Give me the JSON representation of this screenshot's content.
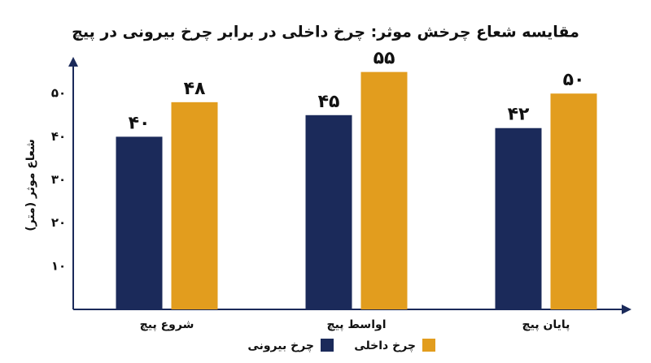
{
  "chart_data": {
    "type": "bar",
    "title": "مقایسه شعاع چرخش موثر: چرخ داخلی در برابر چرخ بیرونی در پیچ",
    "y_label": "شعاع موثر (متر)",
    "categories": [
      "شروع پیچ",
      "اواسط پیچ",
      "پایان پیچ"
    ],
    "series": [
      {
        "name": "چرخ بیرونی",
        "color": "#1b2a5a",
        "values": [
          40,
          45,
          42
        ],
        "value_labels": [
          "۴۰",
          "۴۵",
          "۴۲"
        ]
      },
      {
        "name": "چرخ داخلی",
        "color": "#e29d1e",
        "values": [
          48,
          55,
          50
        ],
        "value_labels": [
          "۴۸",
          "۵۵",
          "۵۰"
        ]
      }
    ],
    "ylim": [
      0,
      57
    ],
    "yticks": [
      {
        "value": 10,
        "label": "۱۰"
      },
      {
        "value": 20,
        "label": "۲۰"
      },
      {
        "value": 30,
        "label": "۳۰"
      },
      {
        "value": 40,
        "label": "۴۰"
      },
      {
        "value": 50,
        "label": "۵۰"
      }
    ],
    "grid": false
  }
}
